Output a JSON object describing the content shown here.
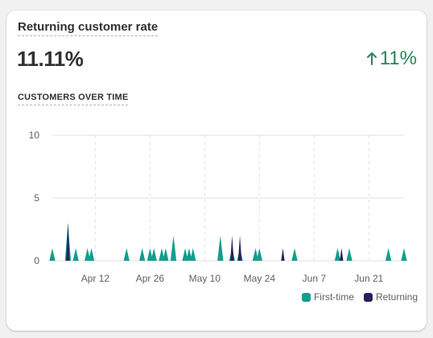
{
  "card": {
    "title": "Returning customer rate",
    "metric_value": "11.11%",
    "change_value": "11%",
    "change_direction": "up",
    "change_icon": "arrow-up-icon",
    "subtitle": "CUSTOMERS OVER TIME"
  },
  "colors": {
    "first_time": "#0e9e8e",
    "returning": "#27215f",
    "grid": "#e3e3e3",
    "change_positive": "#29845a"
  },
  "chart_data": {
    "type": "area",
    "title": "CUSTOMERS OVER TIME",
    "x_start": "Apr 1",
    "x_end": "Jun 30",
    "x_ticks": [
      "Apr 12",
      "Apr 26",
      "May 10",
      "May 24",
      "Jun 7",
      "Jun 21"
    ],
    "y_ticks": [
      0,
      5,
      10
    ],
    "ylim": [
      0,
      10
    ],
    "grid": true,
    "legend_position": "bottom-right",
    "series": [
      {
        "name": "First-time",
        "color": "#0e9e8e",
        "points": [
          {
            "date": "Apr 1",
            "value": 1
          },
          {
            "date": "Apr 5",
            "value": 3
          },
          {
            "date": "Apr 7",
            "value": 1
          },
          {
            "date": "Apr 10",
            "value": 1
          },
          {
            "date": "Apr 11",
            "value": 1
          },
          {
            "date": "Apr 20",
            "value": 1
          },
          {
            "date": "Apr 24",
            "value": 1
          },
          {
            "date": "Apr 26",
            "value": 1
          },
          {
            "date": "Apr 27",
            "value": 1
          },
          {
            "date": "Apr 29",
            "value": 1
          },
          {
            "date": "Apr 30",
            "value": 1
          },
          {
            "date": "May 2",
            "value": 2
          },
          {
            "date": "May 5",
            "value": 1
          },
          {
            "date": "May 6",
            "value": 1
          },
          {
            "date": "May 7",
            "value": 1
          },
          {
            "date": "May 14",
            "value": 2
          },
          {
            "date": "May 17",
            "value": 1
          },
          {
            "date": "May 19",
            "value": 1
          },
          {
            "date": "May 23",
            "value": 1
          },
          {
            "date": "May 24",
            "value": 1
          },
          {
            "date": "Jun 2",
            "value": 1
          },
          {
            "date": "Jun 13",
            "value": 1
          },
          {
            "date": "Jun 16",
            "value": 1
          },
          {
            "date": "Jun 26",
            "value": 1
          },
          {
            "date": "Jun 30",
            "value": 1
          }
        ]
      },
      {
        "name": "Returning",
        "color": "#27215f",
        "points": [
          {
            "date": "Apr 5",
            "value": 3
          },
          {
            "date": "May 17",
            "value": 2
          },
          {
            "date": "May 19",
            "value": 2
          },
          {
            "date": "May 30",
            "value": 1
          },
          {
            "date": "Jun 14",
            "value": 1
          }
        ]
      }
    ]
  },
  "legend": [
    {
      "label": "First-time",
      "color": "#0e9e8e"
    },
    {
      "label": "Returning",
      "color": "#27215f"
    }
  ]
}
